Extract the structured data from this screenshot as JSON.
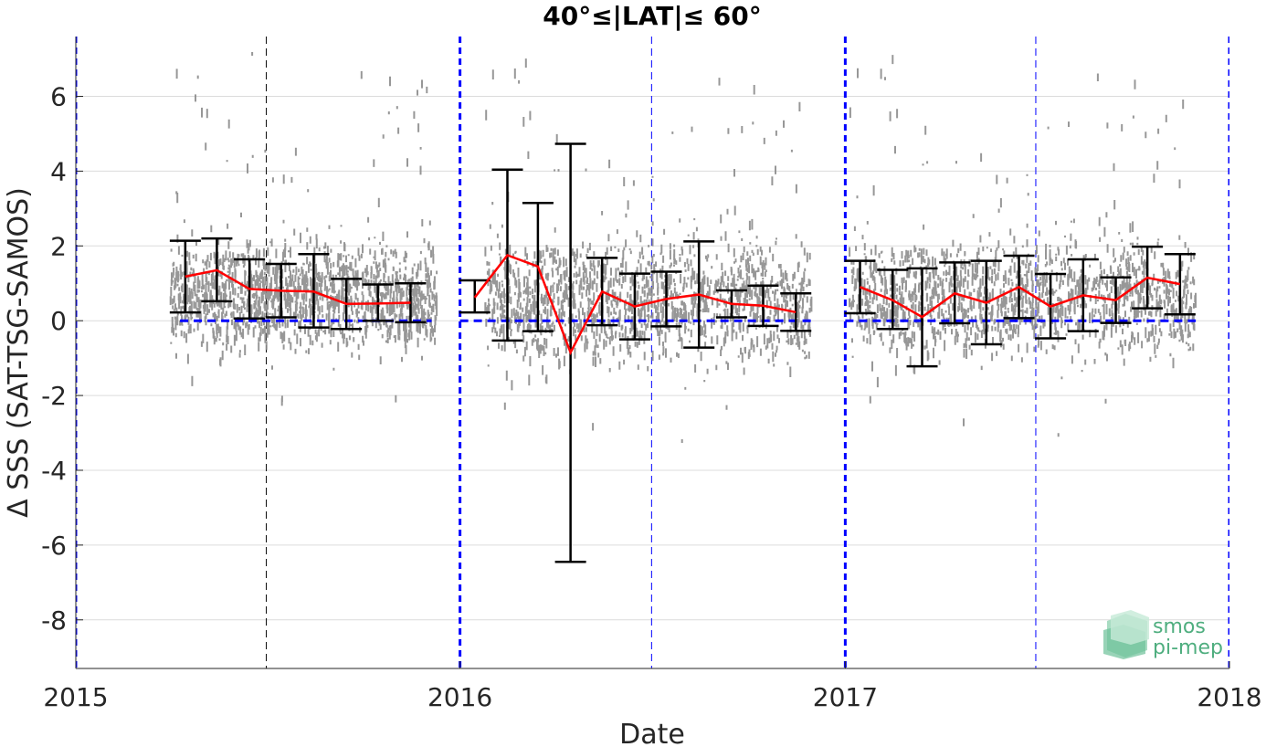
{
  "chart_data": {
    "type": "scatter",
    "title": "40°≤|LAT|≤ 60°",
    "xlabel": "Date",
    "ylabel": "Δ SSS (SAT-TSG-SAMOS)",
    "xlim": [
      "2015-01-01",
      "2018-01-01"
    ],
    "ylim": [
      -9.3,
      7.6
    ],
    "x_ticks": [
      {
        "date": "2015-01-01",
        "label": "2015"
      },
      {
        "date": "2016-01-01",
        "label": "2016"
      },
      {
        "date": "2017-01-01",
        "label": "2017"
      },
      {
        "date": "2018-01-01",
        "label": "2018"
      }
    ],
    "y_ticks": [
      {
        "value": 6,
        "label": "6"
      },
      {
        "value": 4,
        "label": "4"
      },
      {
        "value": 2,
        "label": "2"
      },
      {
        "value": 0,
        "label": "0"
      },
      {
        "value": -2,
        "label": "-2"
      },
      {
        "value": -4,
        "label": "-4"
      },
      {
        "value": -6,
        "label": "-6"
      },
      {
        "value": -8,
        "label": "-8"
      }
    ],
    "grid": true,
    "year_boundaries": [
      "2015-01-01",
      "2016-01-01",
      "2017-01-01",
      "2018-01-01"
    ],
    "mid_year_lines": [
      {
        "date": "2015-07-01",
        "color": "#000000"
      },
      {
        "date": "2016-07-01",
        "color": "#0000ff"
      },
      {
        "date": "2017-07-01",
        "color": "#0000ff"
      }
    ],
    "zero_segments": [
      {
        "from": "2015-04-10",
        "to": "2015-12-05"
      },
      {
        "from": "2016-01-01",
        "to": "2016-11-30"
      },
      {
        "from": "2017-01-01",
        "to": "2017-11-30"
      }
    ],
    "scatter_bands": [
      {
        "from": "2015-04-01",
        "to": "2015-12-10",
        "center": 0.75,
        "spread": 1.1
      },
      {
        "from": "2016-01-25",
        "to": "2016-11-30",
        "center": 0.6,
        "spread": 1.3
      },
      {
        "from": "2017-01-05",
        "to": "2017-11-30",
        "center": 0.7,
        "spread": 1.2
      }
    ],
    "series": [
      {
        "role": "monthly-statistics",
        "line_color": "#ff0000",
        "errorbar_color": "#000000",
        "segments": [
          {
            "points": [
              {
                "date": "2015-04-15",
                "mean": 1.18,
                "low": 0.22,
                "high": 2.14
              },
              {
                "date": "2015-05-15",
                "mean": 1.35,
                "low": 0.52,
                "high": 2.2
              },
              {
                "date": "2015-06-15",
                "mean": 0.85,
                "low": 0.06,
                "high": 1.64
              },
              {
                "date": "2015-07-15",
                "mean": 0.8,
                "low": 0.09,
                "high": 1.52
              },
              {
                "date": "2015-08-15",
                "mean": 0.78,
                "low": -0.18,
                "high": 1.78
              },
              {
                "date": "2015-09-15",
                "mean": 0.45,
                "low": -0.22,
                "high": 1.12
              },
              {
                "date": "2015-10-15",
                "mean": 0.46,
                "low": 0.0,
                "high": 0.97
              },
              {
                "date": "2015-11-15",
                "mean": 0.48,
                "low": -0.04,
                "high": 1.0
              }
            ]
          },
          {
            "points": [
              {
                "date": "2016-01-15",
                "mean": 0.62,
                "low": 0.22,
                "high": 1.08
              },
              {
                "date": "2016-02-15",
                "mean": 1.75,
                "low": -0.53,
                "high": 4.04
              },
              {
                "date": "2016-03-15",
                "mean": 1.45,
                "low": -0.28,
                "high": 3.15
              },
              {
                "date": "2016-04-15",
                "mean": -0.85,
                "low": -6.45,
                "high": 4.73
              },
              {
                "date": "2016-05-15",
                "mean": 0.78,
                "low": -0.12,
                "high": 1.68
              },
              {
                "date": "2016-06-15",
                "mean": 0.38,
                "low": -0.5,
                "high": 1.26
              },
              {
                "date": "2016-07-15",
                "mean": 0.58,
                "low": -0.15,
                "high": 1.31
              },
              {
                "date": "2016-08-15",
                "mean": 0.7,
                "low": -0.72,
                "high": 2.12
              },
              {
                "date": "2016-09-15",
                "mean": 0.45,
                "low": 0.09,
                "high": 0.81
              },
              {
                "date": "2016-10-15",
                "mean": 0.4,
                "low": -0.14,
                "high": 0.94
              },
              {
                "date": "2016-11-15",
                "mean": 0.23,
                "low": -0.27,
                "high": 0.73
              }
            ]
          },
          {
            "points": [
              {
                "date": "2017-01-15",
                "mean": 0.9,
                "low": 0.2,
                "high": 1.6
              },
              {
                "date": "2017-02-15",
                "mean": 0.55,
                "low": -0.22,
                "high": 1.36
              },
              {
                "date": "2017-03-15",
                "mean": 0.1,
                "low": -1.22,
                "high": 1.4
              },
              {
                "date": "2017-04-15",
                "mean": 0.73,
                "low": -0.07,
                "high": 1.56
              },
              {
                "date": "2017-05-15",
                "mean": 0.48,
                "low": -0.63,
                "high": 1.6
              },
              {
                "date": "2017-06-15",
                "mean": 0.9,
                "low": 0.07,
                "high": 1.74
              },
              {
                "date": "2017-07-15",
                "mean": 0.38,
                "low": -0.47,
                "high": 1.25
              },
              {
                "date": "2017-08-15",
                "mean": 0.68,
                "low": -0.28,
                "high": 1.64
              },
              {
                "date": "2017-09-15",
                "mean": 0.55,
                "low": -0.06,
                "high": 1.16
              },
              {
                "date": "2017-10-15",
                "mean": 1.15,
                "low": 0.33,
                "high": 1.98
              },
              {
                "date": "2017-11-15",
                "mean": 0.98,
                "low": 0.17,
                "high": 1.78
              }
            ]
          }
        ]
      }
    ],
    "colors": {
      "scatter": "#8c8c8c",
      "mean_line": "#ff0000",
      "error_bars": "#000000",
      "year_lines": "#0000ff",
      "zero_line": "#0000ff",
      "grid": "#dcdcdc"
    }
  },
  "logo": {
    "line1": "smos",
    "line2": "pi-mep",
    "icon": "smos-pimep-logo-icon"
  }
}
